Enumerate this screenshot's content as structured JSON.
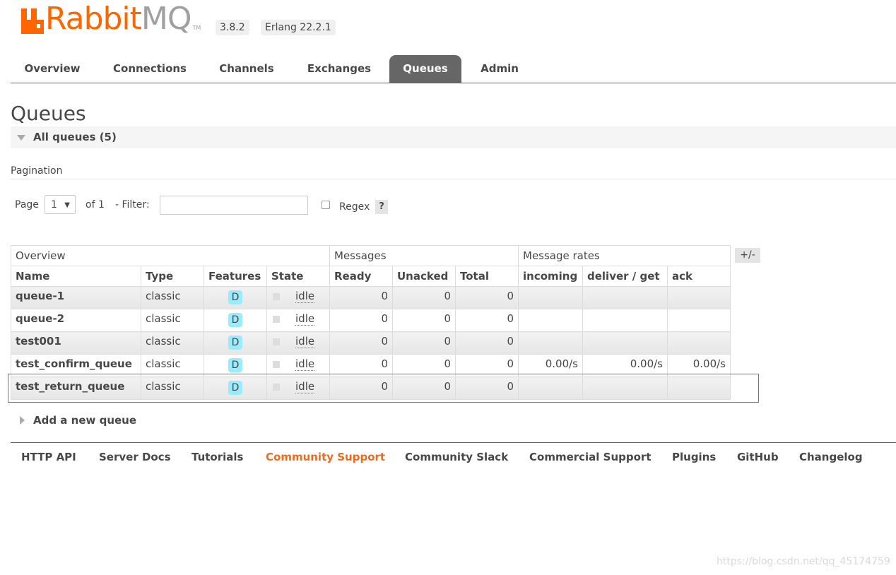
{
  "header": {
    "logo_rabbit": "Rabbit",
    "logo_mq": "MQ",
    "logo_tm": "TM",
    "version": "3.8.2",
    "erlang": "Erlang 22.2.1"
  },
  "tabs": [
    "Overview",
    "Connections",
    "Channels",
    "Exchanges",
    "Queues",
    "Admin"
  ],
  "active_tab": "Queues",
  "page_title": "Queues",
  "section": {
    "label": "All queues (5)"
  },
  "pagination": {
    "heading": "Pagination",
    "page_label": "Page",
    "page_value": "1",
    "of_label": "of 1",
    "filter_label": "- Filter:",
    "filter_value": "",
    "regex_label": "Regex",
    "regex_checked": false,
    "help_label": "?"
  },
  "table": {
    "groups": [
      "Overview",
      "Messages",
      "Message rates"
    ],
    "columns": [
      "Name",
      "Type",
      "Features",
      "State",
      "Ready",
      "Unacked",
      "Total",
      "incoming",
      "deliver / get",
      "ack"
    ],
    "toggle_label": "+/-",
    "rows": [
      {
        "name": "queue-1",
        "type": "classic",
        "feature": "D",
        "state": "idle",
        "ready": "0",
        "unacked": "0",
        "total": "0",
        "incoming": "",
        "deliver": "",
        "ack": ""
      },
      {
        "name": "queue-2",
        "type": "classic",
        "feature": "D",
        "state": "idle",
        "ready": "0",
        "unacked": "0",
        "total": "0",
        "incoming": "",
        "deliver": "",
        "ack": ""
      },
      {
        "name": "test001",
        "type": "classic",
        "feature": "D",
        "state": "idle",
        "ready": "0",
        "unacked": "0",
        "total": "0",
        "incoming": "",
        "deliver": "",
        "ack": ""
      },
      {
        "name": "test_confirm_queue",
        "type": "classic",
        "feature": "D",
        "state": "idle",
        "ready": "0",
        "unacked": "0",
        "total": "0",
        "incoming": "0.00/s",
        "deliver": "0.00/s",
        "ack": "0.00/s"
      },
      {
        "name": "test_return_queue",
        "type": "classic",
        "feature": "D",
        "state": "idle",
        "ready": "0",
        "unacked": "0",
        "total": "0",
        "incoming": "",
        "deliver": "",
        "ack": ""
      }
    ]
  },
  "add_queue_label": "Add a new queue",
  "footer": [
    "HTTP API",
    "Server Docs",
    "Tutorials",
    "Community Support",
    "Community Slack",
    "Commercial Support",
    "Plugins",
    "GitHub",
    "Changelog"
  ],
  "footer_highlight": "Community Support",
  "watermark": "https://blog.csdn.net/qq_45174759",
  "colors": {
    "brand_orange": "#ff6600",
    "logo_gray": "#a0a0a0",
    "tab_active": "#666666",
    "badge": "#99ebff",
    "highlight_box": "#e0474c",
    "footer_highlight": "#f06a1d"
  }
}
